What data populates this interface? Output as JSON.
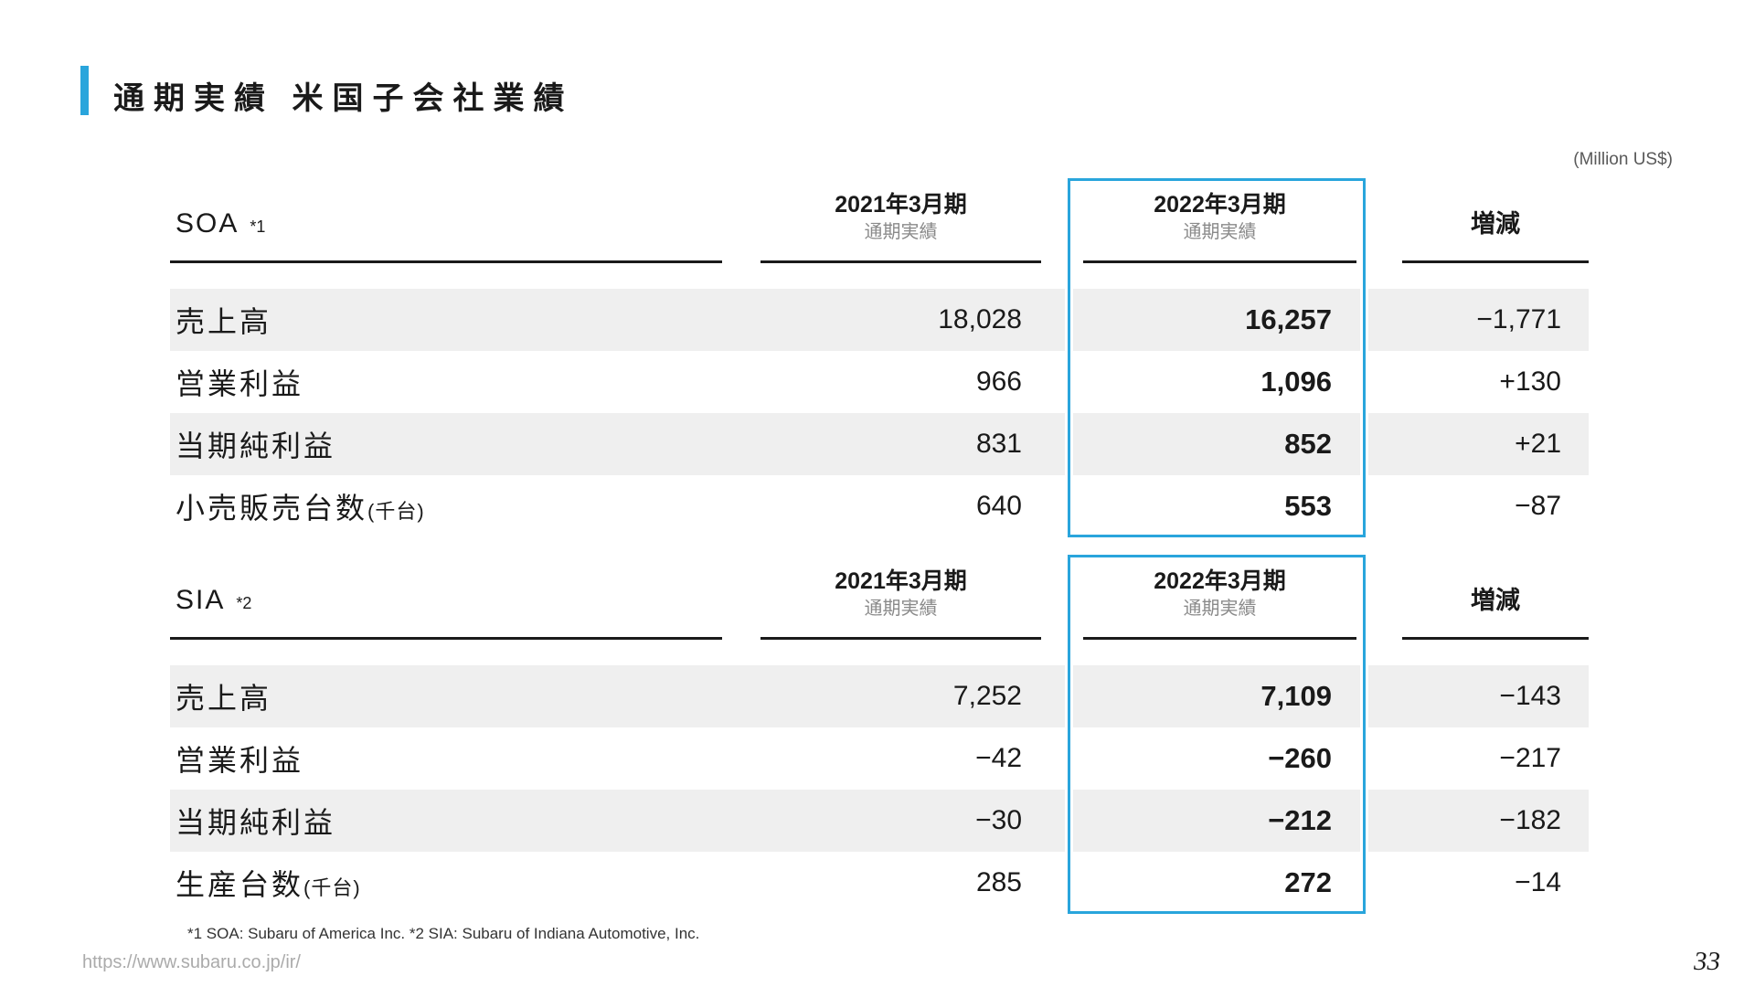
{
  "page": {
    "title": "通期実績 米国子会社業績",
    "unit_note": "(Million US$)",
    "footnote": "*1 SOA: Subaru of America Inc.  *2 SIA: Subaru of Indiana Automotive, Inc.",
    "url": "https://www.subaru.co.jp/ir/",
    "page_number": "33"
  },
  "colors": {
    "accent_blue": "#29a5dc",
    "stripe_gray": "#efefef",
    "text_dark": "#1a1a1a",
    "subtext_gray": "#8a8a8a"
  },
  "tables": [
    {
      "header": {
        "name": "SOA",
        "ref": "*1",
        "col2021": "2021年3月期",
        "col2021_sub": "通期実績",
        "col2022": "2022年3月期",
        "col2022_sub": "通期実績",
        "change": "増減"
      },
      "rows": [
        {
          "label": "売上高",
          "suffix": "",
          "v2021": "18,028",
          "v2022": "16,257",
          "change": "−1,771"
        },
        {
          "label": "営業利益",
          "suffix": "",
          "v2021": "966",
          "v2022": "1,096",
          "change": "+130"
        },
        {
          "label": "当期純利益",
          "suffix": "",
          "v2021": "831",
          "v2022": "852",
          "change": "+21"
        },
        {
          "label": "小売販売台数",
          "suffix": "(千台)",
          "v2021": "640",
          "v2022": "553",
          "change": "−87"
        }
      ]
    },
    {
      "header": {
        "name": "SIA",
        "ref": "*2",
        "col2021": "2021年3月期",
        "col2021_sub": "通期実績",
        "col2022": "2022年3月期",
        "col2022_sub": "通期実績",
        "change": "増減"
      },
      "rows": [
        {
          "label": "売上高",
          "suffix": "",
          "v2021": "7,252",
          "v2022": "7,109",
          "change": "−143"
        },
        {
          "label": "営業利益",
          "suffix": "",
          "v2021": "−42",
          "v2022": "−260",
          "change": "−217"
        },
        {
          "label": "当期純利益",
          "suffix": "",
          "v2021": "−30",
          "v2022": "−212",
          "change": "−182"
        },
        {
          "label": "生産台数",
          "suffix": "(千台)",
          "v2021": "285",
          "v2022": "272",
          "change": "−14"
        }
      ]
    }
  ]
}
